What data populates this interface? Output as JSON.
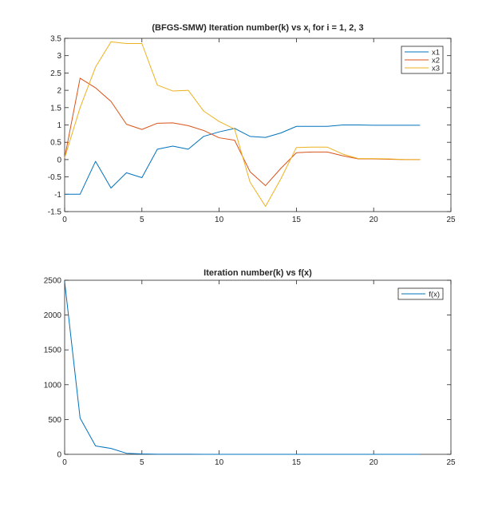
{
  "chart_data": [
    {
      "type": "line",
      "title_main": "(BFGS-SMW) Iteration number(k) vs x",
      "title_sub": "i",
      "title_tail": " for i = 1, 2, 3",
      "xlim": [
        0,
        25
      ],
      "ylim": [
        -1.5,
        3.5
      ],
      "xticks": [
        0,
        5,
        10,
        15,
        20,
        25
      ],
      "yticks": [
        -1.5,
        -1,
        -0.5,
        0,
        0.5,
        1,
        1.5,
        2,
        2.5,
        3,
        3.5
      ],
      "ytick_labels": [
        "-1.5",
        "-1",
        "-0.5",
        "0",
        "0.5",
        "1",
        "1.5",
        "2",
        "2.5",
        "3",
        "3.5"
      ],
      "legend_position": "top-right",
      "x": [
        0,
        1,
        2,
        3,
        4,
        5,
        6,
        7,
        8,
        9,
        10,
        11,
        12,
        13,
        14,
        15,
        16,
        17,
        18,
        19,
        20,
        21,
        22,
        23
      ],
      "series": [
        {
          "name": "x1",
          "color": "#0072bd",
          "values": [
            -1.0,
            -1.0,
            -0.05,
            -0.82,
            -0.38,
            -0.52,
            0.3,
            0.39,
            0.3,
            0.67,
            0.8,
            0.9,
            0.67,
            0.64,
            0.77,
            0.96,
            0.96,
            0.96,
            1.0,
            1.0,
            0.99,
            0.99,
            0.99,
            0.99
          ]
        },
        {
          "name": "x2",
          "color": "#d95319",
          "values": [
            0.05,
            2.35,
            2.07,
            1.68,
            1.02,
            0.87,
            1.05,
            1.06,
            0.98,
            0.84,
            0.63,
            0.56,
            -0.35,
            -0.75,
            -0.25,
            0.2,
            0.22,
            0.22,
            0.11,
            0.02,
            0.02,
            0.01,
            0.0,
            0.0
          ]
        },
        {
          "name": "x3",
          "color": "#edb120",
          "values": [
            0.05,
            1.5,
            2.67,
            3.4,
            3.35,
            3.35,
            2.15,
            1.98,
            2.0,
            1.4,
            1.1,
            0.88,
            -0.65,
            -1.35,
            -0.55,
            0.35,
            0.36,
            0.36,
            0.16,
            0.03,
            0.03,
            0.02,
            0.0,
            0.0
          ]
        }
      ]
    },
    {
      "type": "line",
      "title": "Iteration number(k) vs f(x)",
      "xlim": [
        0,
        25
      ],
      "ylim": [
        0,
        2500
      ],
      "xticks": [
        0,
        5,
        10,
        15,
        20,
        25
      ],
      "yticks": [
        0,
        500,
        1000,
        1500,
        2000,
        2500
      ],
      "ytick_labels": [
        "0",
        "500",
        "1000",
        "1500",
        "2000",
        "2500"
      ],
      "legend_position": "top-right",
      "x": [
        0,
        1,
        2,
        3,
        4,
        5,
        6,
        7,
        8,
        9,
        10,
        11,
        12,
        13,
        14,
        15,
        16,
        17,
        18,
        19,
        20,
        21,
        22,
        23
      ],
      "series": [
        {
          "name": "f(x)",
          "color": "#0072bd",
          "values": [
            2480,
            520,
            120,
            85,
            15,
            5,
            2,
            1,
            1,
            0,
            0,
            0,
            0,
            0,
            0,
            0,
            0,
            0,
            0,
            0,
            0,
            0,
            0,
            0
          ]
        }
      ]
    }
  ]
}
